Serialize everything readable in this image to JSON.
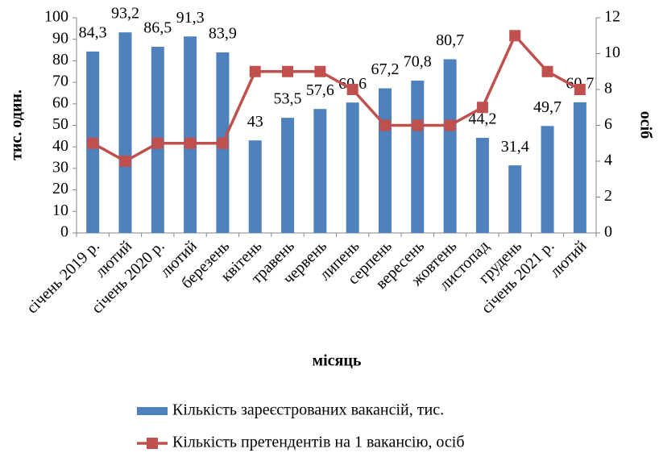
{
  "chart_data": {
    "type": "bar",
    "x_label": "місяць",
    "y_label": "тис. один.",
    "y2_label": "осіб",
    "categories": [
      "січень 2019 р.",
      "лютий",
      "січень 2020 р.",
      "лютий",
      "березень",
      "квітень",
      "травень",
      "червень",
      "липень",
      "серпень",
      "вересень",
      "жовтень",
      "листопад",
      "грудень",
      "січень 2021 р.",
      "лютий"
    ],
    "series": [
      {
        "name": "Кількість зареєстрованих вакансій, тис.",
        "type": "bar",
        "color": "#4f81bd",
        "values": [
          84.3,
          93.2,
          86.5,
          91.3,
          83.9,
          43,
          53.5,
          57.6,
          60.6,
          67.2,
          70.8,
          80.7,
          44.2,
          31.4,
          49.7,
          60.7
        ],
        "value_labels": [
          "84,3",
          "93,2",
          "86,5",
          "91,3",
          "83,9",
          "43",
          "53,5",
          "57,6",
          "60,6",
          "67,2",
          "70,8",
          "80,7",
          "44,2",
          "31,4",
          "49,7",
          "60,7"
        ]
      },
      {
        "name": "Кількість претендентів на 1 вакансію, осіб",
        "type": "line",
        "color": "#c0504d",
        "axis": "y2",
        "values": [
          5,
          4,
          5,
          5,
          5,
          9,
          9,
          9,
          8,
          6,
          6,
          6,
          7,
          11,
          9,
          8
        ]
      }
    ],
    "ylim": [
      0,
      100
    ],
    "yticks": [
      0,
      10,
      20,
      30,
      40,
      50,
      60,
      70,
      80,
      90,
      100
    ],
    "y2lim": [
      0,
      12
    ],
    "y2ticks": [
      0,
      2,
      4,
      6,
      8,
      10,
      12
    ],
    "grid": false,
    "legend": "bottom"
  }
}
